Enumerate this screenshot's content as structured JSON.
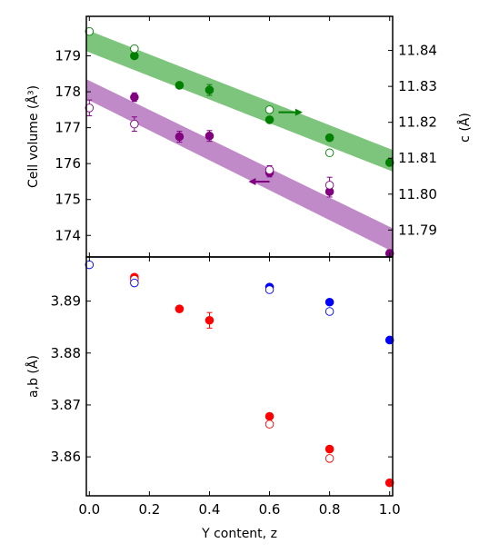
{
  "chart_data": [
    {
      "type": "scatter",
      "panel": "top",
      "ylabel": "Cell volume (Å³)",
      "y2label": "c (Å)",
      "xlim": [
        -0.01,
        1.01
      ],
      "ylim": [
        173.4,
        180.1
      ],
      "y2lim": [
        11.7825,
        11.8495
      ],
      "yticks": [
        174,
        175,
        176,
        177,
        178,
        179
      ],
      "y2ticks": [
        11.79,
        11.8,
        11.81,
        11.82,
        11.83,
        11.84
      ],
      "ytick_labels": [
        "174",
        "175",
        "176",
        "177",
        "178",
        "179"
      ],
      "y2tick_labels": [
        "11.79",
        "11.80",
        "11.81",
        "11.82",
        "11.83",
        "11.84"
      ],
      "bands": [
        {
          "axis": "y2",
          "color": "#7dc47d",
          "x": [
            -0.01,
            1.01
          ],
          "lower": [
            11.8398,
            11.8063
          ],
          "upper": [
            11.8458,
            11.8123
          ]
        },
        {
          "axis": "y",
          "color": "#c08ac8",
          "x": [
            -0.01,
            1.01
          ],
          "lower": [
            177.8,
            173.55
          ],
          "upper": [
            178.35,
            174.2
          ]
        }
      ],
      "series": [
        {
          "axis": "y2",
          "fill": "filled",
          "color": "#008000",
          "x": [
            0.15,
            0.3,
            0.4,
            0.6,
            0.8,
            1.0
          ],
          "y": [
            11.8385,
            11.8303,
            11.829,
            11.8207,
            11.8157,
            11.8088
          ],
          "err": [
            0.0005,
            0.0005,
            0.0015,
            0.0005,
            0.0005,
            0.0005
          ]
        },
        {
          "axis": "y2",
          "fill": "open",
          "color": "#008000",
          "x": [
            0.0,
            0.15,
            0.6,
            0.8
          ],
          "y": [
            11.8453,
            11.8405,
            11.8235,
            11.8115
          ],
          "err": [
            0.0004,
            0.0004,
            0.0004,
            0.0004
          ]
        },
        {
          "axis": "y",
          "fill": "filled",
          "color": "#800080",
          "x": [
            0.15,
            0.3,
            0.4,
            0.6,
            0.8,
            1.0
          ],
          "y": [
            177.85,
            176.75,
            176.77,
            175.75,
            175.22,
            173.5
          ],
          "err": [
            0.12,
            0.15,
            0.15,
            0.12,
            0.15,
            0.1
          ]
        },
        {
          "axis": "y",
          "fill": "open",
          "color": "#800080",
          "x": [
            0.0,
            0.15,
            0.6,
            0.8
          ],
          "y": [
            177.55,
            177.1,
            175.82,
            175.4
          ],
          "err": [
            0.22,
            0.2,
            0.12,
            0.22
          ]
        }
      ],
      "arrows": [
        {
          "axis": "y2",
          "color": "#008000",
          "from": [
            0.63,
            11.8228
          ],
          "to": [
            0.71,
            11.8228
          ]
        },
        {
          "axis": "y",
          "color": "#800080",
          "from": [
            0.6,
            175.5
          ],
          "to": [
            0.53,
            175.5
          ]
        }
      ]
    },
    {
      "type": "scatter",
      "panel": "bottom",
      "xlabel": "Y content, z",
      "ylabel": "a,b (Å)",
      "xlim": [
        -0.01,
        1.01
      ],
      "ylim": [
        3.8525,
        3.8985
      ],
      "xticks": [
        0.0,
        0.2,
        0.4,
        0.6,
        0.8,
        1.0
      ],
      "xtick_labels": [
        "0.0",
        "0.2",
        "0.4",
        "0.6",
        "0.8",
        "1.0"
      ],
      "yticks": [
        3.86,
        3.87,
        3.88,
        3.89
      ],
      "ytick_labels": [
        "3.86",
        "3.87",
        "3.88",
        "3.89"
      ],
      "series": [
        {
          "fill": "filled",
          "color": "#ff0000",
          "x": [
            0.15,
            0.3,
            0.4,
            0.6,
            0.8,
            1.0
          ],
          "y": [
            3.8946,
            3.8885,
            3.8863,
            3.8678,
            3.8615,
            3.855
          ],
          "err": [
            0,
            0,
            0.0015,
            0,
            0,
            0
          ]
        },
        {
          "fill": "open",
          "color": "#ff0000",
          "x": [
            0.15,
            0.6,
            0.8
          ],
          "y": [
            3.8942,
            3.8663,
            3.8597
          ],
          "err": [
            0,
            0,
            0
          ]
        },
        {
          "fill": "filled",
          "color": "#0000ff",
          "x": [
            0.6,
            0.8,
            1.0
          ],
          "y": [
            3.8927,
            3.8898,
            3.8825
          ],
          "err": [
            0,
            0,
            0
          ]
        },
        {
          "fill": "open",
          "color": "#0000ff",
          "x": [
            0.0,
            0.15,
            0.6,
            0.8
          ],
          "y": [
            3.897,
            3.8935,
            3.8922,
            3.888
          ],
          "err": [
            0,
            0,
            0,
            0
          ]
        }
      ]
    }
  ]
}
